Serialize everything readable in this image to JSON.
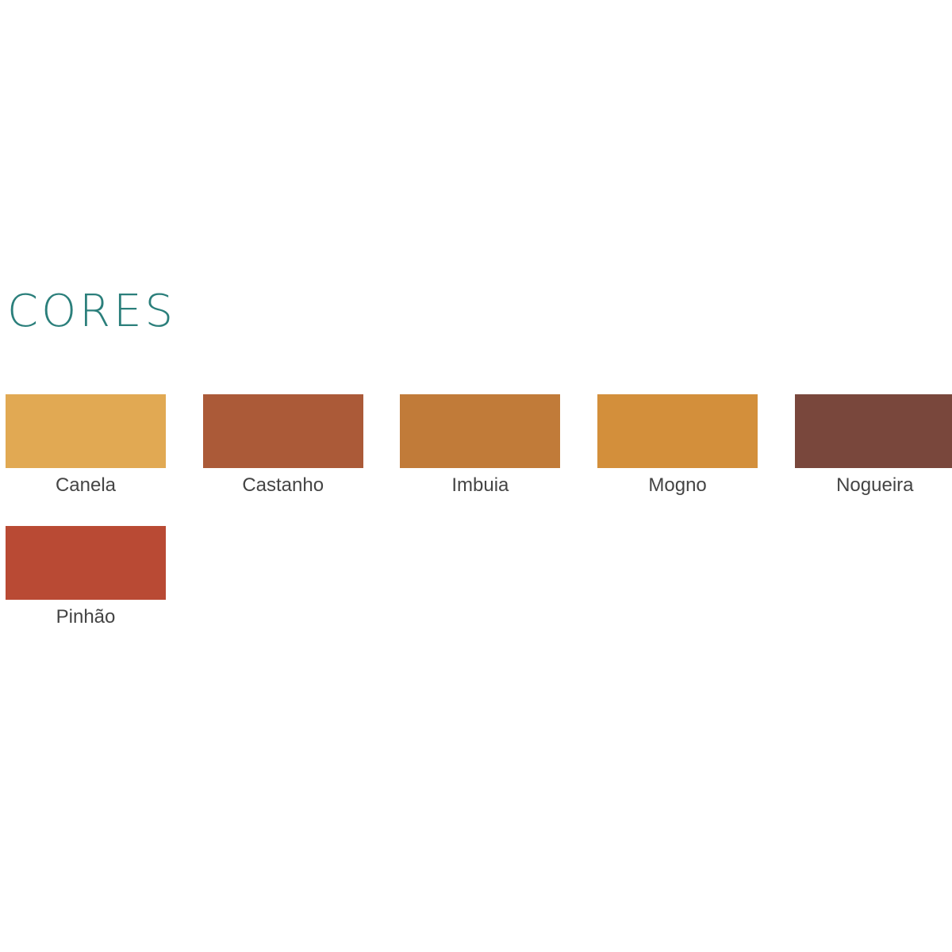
{
  "header": {
    "title": "CORES"
  },
  "swatches": [
    {
      "name": "Canela",
      "color": "#e1a953"
    },
    {
      "name": "Castanho",
      "color": "#ab5a38"
    },
    {
      "name": "Imbuia",
      "color": "#c17b39"
    },
    {
      "name": "Mogno",
      "color": "#d38f3b"
    },
    {
      "name": "Nogueira",
      "color": "#79473c"
    },
    {
      "name": "Pinhão",
      "color": "#b94a34"
    }
  ]
}
